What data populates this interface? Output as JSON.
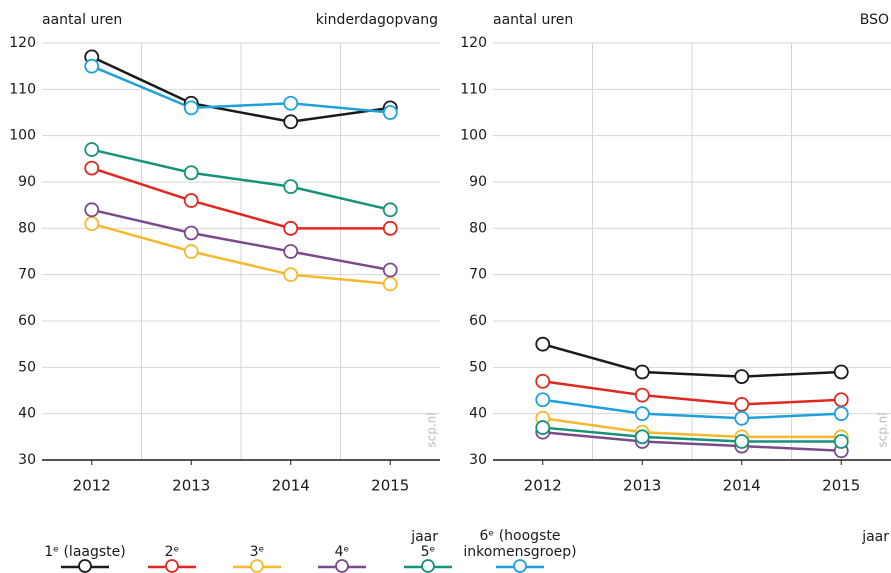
{
  "chart_data": [
    {
      "type": "line",
      "title": "kinderdagopvang",
      "y_label": "aantal uren",
      "x_label": "jaar",
      "watermark": "scp.nl",
      "title_color": "#1ea0dc",
      "categories": [
        "2012",
        "2013",
        "2014",
        "2015"
      ],
      "ylim": [
        30,
        120
      ],
      "yticks": [
        30,
        40,
        50,
        60,
        70,
        80,
        90,
        100,
        110,
        120
      ],
      "grid": true,
      "series": [
        {
          "name": "1ᵉ (laagste)",
          "color": "#1a1a1a",
          "values": [
            117,
            107,
            103,
            106
          ]
        },
        {
          "name": "2ᵉ",
          "color": "#e0281e",
          "values": [
            93,
            86,
            80,
            80
          ]
        },
        {
          "name": "3ᵉ",
          "color": "#f5b92d",
          "values": [
            81,
            75,
            70,
            68
          ]
        },
        {
          "name": "4ᵉ",
          "color": "#7a4b8c",
          "values": [
            84,
            79,
            75,
            71
          ]
        },
        {
          "name": "5ᵉ",
          "color": "#16917a",
          "values": [
            97,
            92,
            89,
            84
          ]
        },
        {
          "name": "6ᵉ (hoogste inkomensgroep)",
          "color": "#1ea0dc",
          "values": [
            115,
            106,
            107,
            105
          ]
        }
      ]
    },
    {
      "type": "line",
      "title": "BSO",
      "y_label": "aantal uren",
      "x_label": "jaar",
      "watermark": "scp.nl",
      "categories": [
        "2012",
        "2013",
        "2014",
        "2015"
      ],
      "ylim": [
        30,
        120
      ],
      "yticks": [
        30,
        40,
        50,
        60,
        70,
        80,
        90,
        100,
        110,
        120
      ],
      "grid": true,
      "series": [
        {
          "values": [
            55,
            49,
            48,
            49
          ]
        },
        {
          "values": [
            47,
            44,
            42,
            43
          ]
        },
        {
          "values": [
            39,
            36,
            35,
            35
          ]
        },
        {
          "values": [
            36,
            34,
            33,
            32
          ]
        },
        {
          "values": [
            37,
            35,
            34,
            34
          ]
        },
        {
          "values": [
            43,
            40,
            39,
            40
          ]
        }
      ]
    }
  ]
}
